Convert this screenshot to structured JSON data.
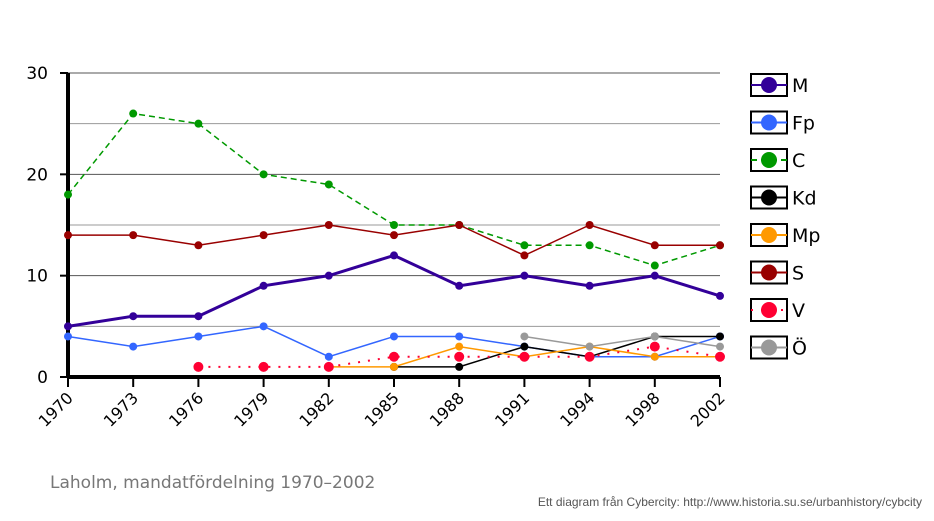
{
  "chart_data": {
    "type": "line",
    "title": "Laholm, mandatfördelning 1970–2002",
    "credit": "Ett diagram från Cybercity: http://www.historia.su.se/urbanhistory/cybcity",
    "categories": [
      "1970",
      "1973",
      "1976",
      "1979",
      "1982",
      "1985",
      "1988",
      "1991",
      "1994",
      "1998",
      "2002"
    ],
    "ylim": [
      0,
      30
    ],
    "yticks": [
      0,
      10,
      20,
      30
    ],
    "legend": "right",
    "series": [
      {
        "name": "M",
        "color": "#330099",
        "dash": "solid",
        "width": 3,
        "values": [
          5,
          6,
          6,
          9,
          10,
          12,
          9,
          10,
          9,
          10,
          8
        ]
      },
      {
        "name": "Fp",
        "color": "#3366ff",
        "dash": "solid",
        "width": 1.5,
        "values": [
          4,
          3,
          4,
          5,
          2,
          4,
          4,
          3,
          2,
          2,
          4
        ]
      },
      {
        "name": "C",
        "color": "#009900",
        "dash": "dashed",
        "width": 1.5,
        "values": [
          18,
          26,
          25,
          20,
          19,
          15,
          15,
          13,
          13,
          11,
          13
        ]
      },
      {
        "name": "Kd",
        "color": "#000000",
        "dash": "solid",
        "width": 1.5,
        "values": [
          null,
          null,
          null,
          null,
          null,
          1,
          1,
          3,
          2,
          4,
          4
        ]
      },
      {
        "name": "Mp",
        "color": "#ff9900",
        "dash": "solid",
        "width": 1.5,
        "values": [
          null,
          null,
          null,
          null,
          1,
          1,
          3,
          2,
          3,
          2,
          2
        ]
      },
      {
        "name": "S",
        "color": "#990000",
        "dash": "solid",
        "width": 1.5,
        "values": [
          14,
          14,
          13,
          14,
          15,
          14,
          15,
          12,
          15,
          13,
          13
        ]
      },
      {
        "name": "V",
        "color": "#ff0033",
        "dash": "dotted",
        "width": 2,
        "values": [
          null,
          null,
          1,
          1,
          1,
          2,
          2,
          2,
          2,
          3,
          2
        ]
      },
      {
        "name": "Ö",
        "color": "#999999",
        "dash": "solid",
        "width": 1.5,
        "values": [
          null,
          null,
          null,
          null,
          null,
          null,
          null,
          4,
          3,
          4,
          3
        ]
      }
    ]
  }
}
